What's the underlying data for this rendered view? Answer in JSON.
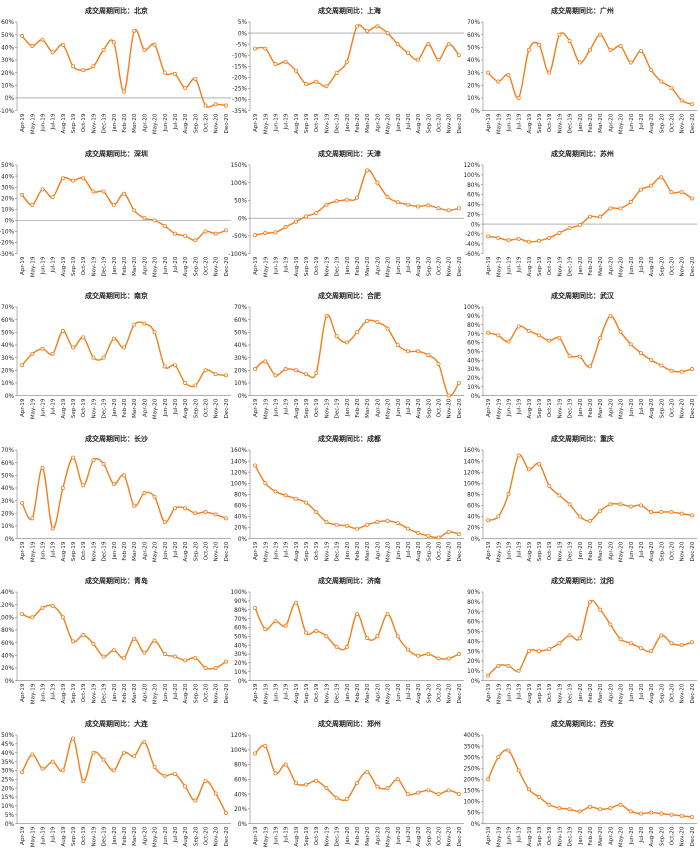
{
  "style": {
    "line_color": "#F07F1C",
    "marker_fill": "#ffffff",
    "axis_color": "#808080",
    "text_color": "#222222"
  },
  "months": [
    "Apr-19",
    "May-19",
    "Jun-19",
    "Jul-19",
    "Aug-19",
    "Sep-19",
    "Oct-19",
    "Nov-19",
    "Dec-19",
    "Jan-20",
    "Feb-20",
    "Mar-20",
    "Apr-20",
    "May-20",
    "Jun-20",
    "Jul-20",
    "Aug-20",
    "Sep-20",
    "Oct-20",
    "Nov-20",
    "Dec-20"
  ],
  "tick_labels": [
    "Apr-19",
    "May-19",
    "Jun-19",
    "Jul-19",
    "Aug-19",
    "Sep-19",
    "Oct-19",
    "Nov-19",
    "Dec-19",
    "Jan-20",
    "Feb-20",
    "Mar-20",
    "Apr-20",
    "May-20",
    "Jun-20",
    "Jul-20",
    "Aug-20",
    "Sep-20",
    "Oct-20",
    "Nov-20",
    "Dec-20"
  ],
  "chart_data": [
    {
      "type": "line",
      "title": "成交周期同比：北京",
      "ylim": [
        -10,
        60
      ],
      "ystep": 10,
      "series": [
        {
          "values": [
            49,
            41,
            46,
            36,
            42,
            25,
            22,
            25,
            38,
            44,
            5,
            53,
            38,
            42,
            20,
            19,
            8,
            15,
            -6,
            -5,
            -6
          ]
        }
      ]
    },
    {
      "type": "line",
      "title": "成交周期同比：上海",
      "ylim": [
        -35,
        5
      ],
      "ystep": 5,
      "series": [
        {
          "values": [
            -7,
            -7,
            -14,
            -13,
            -17,
            -23,
            -22,
            -24,
            -18,
            -13,
            3,
            1,
            3,
            0,
            -5,
            -9,
            -12,
            -5,
            -12,
            -5,
            -10
          ]
        }
      ]
    },
    {
      "type": "line",
      "title": "成交周期同比：广州",
      "ylim": [
        0,
        70
      ],
      "ystep": 10,
      "series": [
        {
          "values": [
            30,
            23,
            28,
            10,
            48,
            52,
            30,
            60,
            55,
            38,
            48,
            60,
            48,
            51,
            38,
            47,
            32,
            23,
            18,
            8,
            5
          ]
        }
      ]
    },
    {
      "type": "line",
      "title": "成交周期同比：深圳",
      "ylim": [
        -30,
        50
      ],
      "ystep": 10,
      "series": [
        {
          "values": [
            23,
            14,
            28,
            21,
            38,
            36,
            38,
            26,
            26,
            14,
            24,
            9,
            2,
            0,
            -5,
            -12,
            -14,
            -18,
            -10,
            -12,
            -9
          ]
        }
      ]
    },
    {
      "type": "line",
      "title": "成交周期同比：天津",
      "ylim": [
        -100,
        150
      ],
      "ystep": 50,
      "series": [
        {
          "values": [
            -48,
            -42,
            -40,
            -25,
            -10,
            5,
            15,
            38,
            48,
            52,
            58,
            135,
            100,
            60,
            45,
            38,
            33,
            36,
            28,
            22,
            28
          ]
        }
      ]
    },
    {
      "type": "line",
      "title": "成交周期同比：苏州",
      "ylim": [
        -60,
        120
      ],
      "ystep": 20,
      "series": [
        {
          "values": [
            -25,
            -28,
            -33,
            -30,
            -36,
            -34,
            -28,
            -18,
            -8,
            -2,
            15,
            15,
            32,
            32,
            45,
            70,
            78,
            95,
            65,
            65,
            52
          ]
        }
      ]
    },
    {
      "type": "line",
      "title": "成交周期同比：南京",
      "ylim": [
        0,
        70
      ],
      "ystep": 10,
      "series": [
        {
          "values": [
            24,
            33,
            37,
            33,
            51,
            38,
            46,
            30,
            30,
            45,
            38,
            56,
            57,
            50,
            23,
            24,
            10,
            8,
            20,
            17,
            16
          ]
        }
      ]
    },
    {
      "type": "line",
      "title": "成交周期同比：合肥",
      "ylim": [
        0,
        70
      ],
      "ystep": 10,
      "series": [
        {
          "values": [
            21,
            27,
            16,
            21,
            20,
            17,
            18,
            63,
            47,
            42,
            50,
            59,
            58,
            53,
            40,
            35,
            35,
            32,
            25,
            0,
            10
          ]
        }
      ]
    },
    {
      "type": "line",
      "title": "成交周期同比：武汉",
      "ylim": [
        0,
        100
      ],
      "ystep": 10,
      "series": [
        {
          "values": [
            71,
            68,
            61,
            78,
            73,
            68,
            62,
            65,
            45,
            44,
            33,
            65,
            90,
            72,
            58,
            48,
            40,
            34,
            28,
            27,
            30
          ]
        }
      ]
    },
    {
      "type": "line",
      "title": "成交周期同比：长沙",
      "ylim": [
        0,
        70
      ],
      "ystep": 10,
      "series": [
        {
          "values": [
            28,
            16,
            56,
            8,
            40,
            64,
            42,
            62,
            59,
            43,
            50,
            26,
            36,
            33,
            13,
            24,
            24,
            20,
            21,
            19,
            16
          ]
        }
      ]
    },
    {
      "type": "line",
      "title": "成交周期同比：成都",
      "ylim": [
        0,
        160
      ],
      "ystep": 20,
      "series": [
        {
          "values": [
            132,
            100,
            85,
            78,
            72,
            65,
            48,
            30,
            25,
            23,
            18,
            25,
            30,
            32,
            28,
            18,
            10,
            5,
            2,
            12,
            8
          ]
        }
      ]
    },
    {
      "type": "line",
      "title": "成交周期同比：重庆",
      "ylim": [
        0,
        160
      ],
      "ystep": 20,
      "series": [
        {
          "values": [
            33,
            40,
            80,
            150,
            125,
            135,
            95,
            78,
            62,
            40,
            32,
            50,
            62,
            62,
            58,
            60,
            48,
            48,
            48,
            45,
            42
          ]
        }
      ]
    },
    {
      "type": "line",
      "title": "成交周期同比：青岛",
      "ylim": [
        0,
        140
      ],
      "ystep": 20,
      "series": [
        {
          "values": [
            105,
            100,
            115,
            118,
            100,
            62,
            72,
            58,
            38,
            48,
            36,
            66,
            44,
            63,
            42,
            38,
            32,
            36,
            20,
            20,
            30
          ]
        }
      ]
    },
    {
      "type": "line",
      "title": "成交周期同比：济南",
      "ylim": [
        0,
        100
      ],
      "ystep": 10,
      "series": [
        {
          "values": [
            82,
            58,
            67,
            62,
            88,
            54,
            56,
            50,
            38,
            38,
            75,
            48,
            50,
            75,
            50,
            35,
            28,
            30,
            25,
            25,
            30
          ]
        }
      ]
    },
    {
      "type": "line",
      "title": "成交周期同比：沈阳",
      "ylim": [
        0,
        90
      ],
      "ystep": 10,
      "series": [
        {
          "values": [
            5,
            15,
            15,
            10,
            30,
            30,
            32,
            38,
            46,
            43,
            80,
            72,
            57,
            42,
            38,
            33,
            30,
            46,
            38,
            36,
            39
          ]
        }
      ]
    },
    {
      "type": "line",
      "title": "成交周期同比：大连",
      "ylim": [
        0,
        50
      ],
      "ystep": 5,
      "series": [
        {
          "values": [
            29,
            39,
            31,
            35,
            30,
            48,
            24,
            40,
            36,
            30,
            40,
            38,
            46,
            32,
            27,
            28,
            21,
            13,
            24,
            17,
            6
          ]
        }
      ]
    },
    {
      "type": "line",
      "title": "成交周期同比：郑州",
      "ylim": [
        0,
        120
      ],
      "ystep": 20,
      "series": [
        {
          "values": [
            95,
            105,
            68,
            80,
            55,
            53,
            58,
            48,
            35,
            33,
            55,
            70,
            50,
            48,
            60,
            40,
            42,
            45,
            40,
            45,
            40
          ]
        }
      ]
    },
    {
      "type": "line",
      "title": "成交周期同比：西安",
      "ylim": [
        0,
        400
      ],
      "ystep": 50,
      "series": [
        {
          "values": [
            200,
            300,
            330,
            240,
            155,
            120,
            85,
            70,
            65,
            55,
            75,
            65,
            70,
            85,
            55,
            45,
            50,
            45,
            40,
            35,
            30
          ]
        }
      ]
    }
  ]
}
